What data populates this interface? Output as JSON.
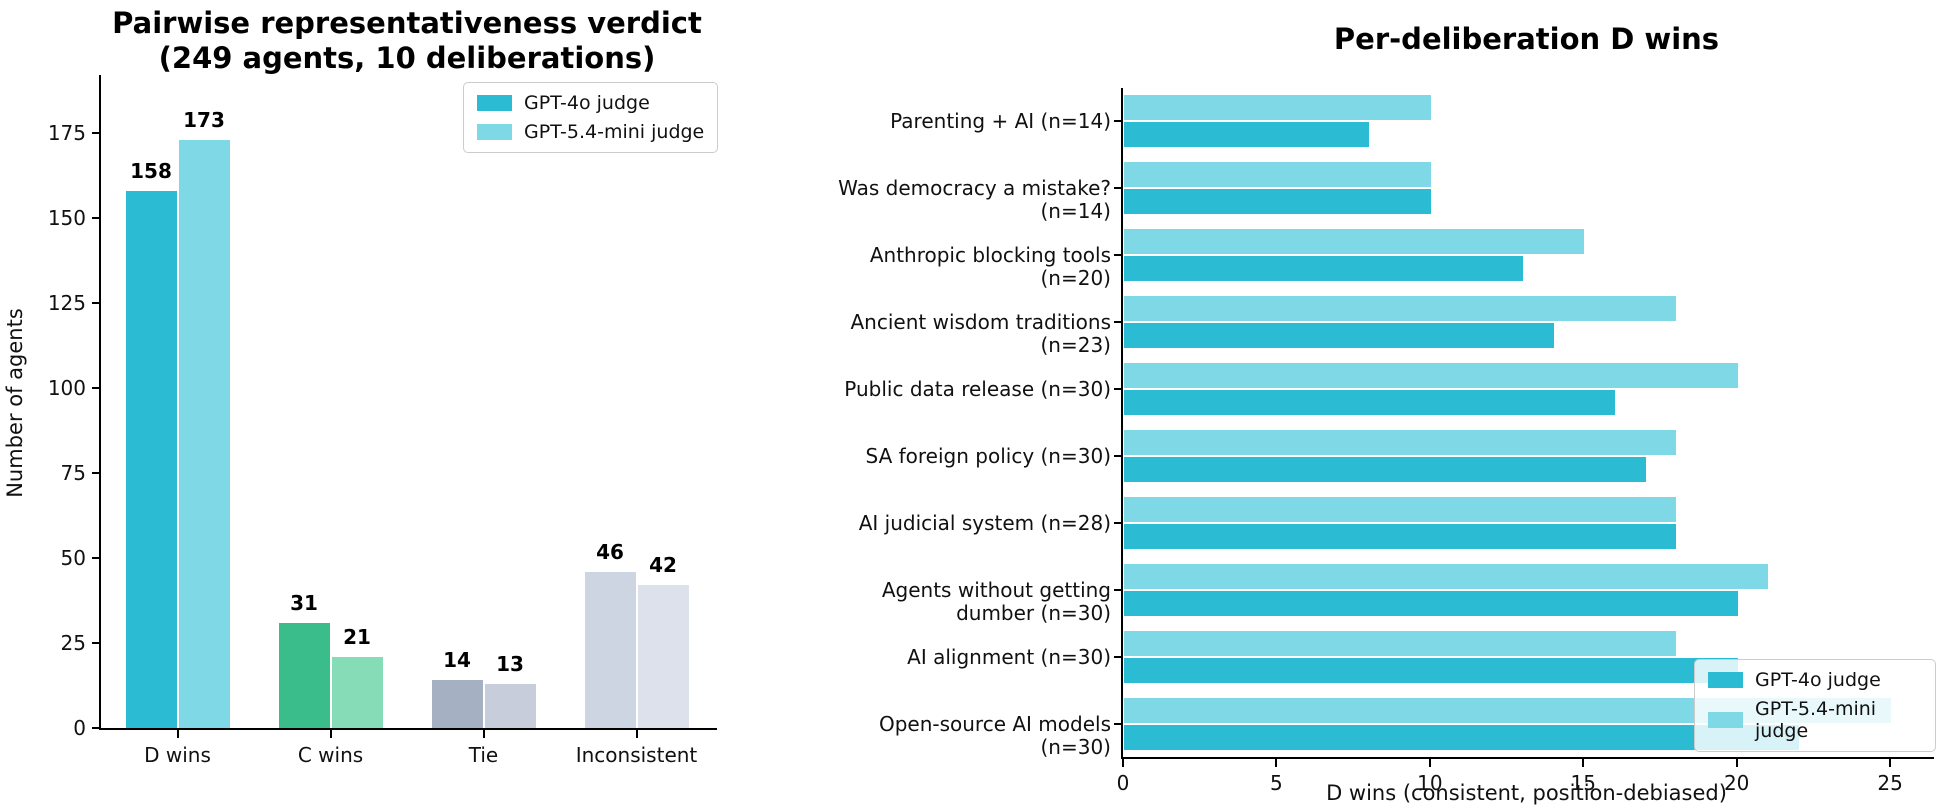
{
  "chart_data": [
    {
      "type": "bar",
      "title_line1": "Pairwise representativeness verdict",
      "title_line2": "(249 agents, 10 deliberations)",
      "ylabel": "Number of agents",
      "categories": [
        "D wins",
        "C wins",
        "Tie",
        "Inconsistent"
      ],
      "series": [
        {
          "name": "GPT-4o judge",
          "values": [
            158,
            31,
            14,
            46
          ]
        },
        {
          "name": "GPT-5.4-mini judge",
          "values": [
            173,
            21,
            13,
            42
          ]
        }
      ],
      "colors_series1_by_category": [
        "#2bbcd4",
        "#3abd8b",
        "#a6b0c3",
        "#cdd4e2"
      ],
      "colors_series2_by_category": [
        "#7ed8e6",
        "#86dcb7",
        "#c7cddb",
        "#dde1ec"
      ],
      "yticks": [
        0,
        25,
        50,
        75,
        100,
        125,
        150,
        175
      ],
      "ylim": [
        0,
        192
      ],
      "grid": false,
      "value_labels_shown": true,
      "legend": {
        "entries": [
          "GPT-4o judge",
          "GPT-5.4-mini judge"
        ],
        "colors": [
          "#2bbcd4",
          "#7ed8e6"
        ],
        "position": "upper right"
      }
    },
    {
      "type": "barh",
      "title": "Per-deliberation D wins",
      "xlabel": "D wins (consistent, position-debiased)",
      "categories": [
        "Parenting + AI (n=14)",
        "Was democracy a mistake? (n=14)",
        "Anthropic blocking tools (n=20)",
        "Ancient wisdom traditions (n=23)",
        "Public data release (n=30)",
        "SA foreign policy (n=30)",
        "AI judicial system (n=28)",
        "Agents without getting dumber (n=30)",
        "AI alignment (n=30)",
        "Open-source AI models (n=30)"
      ],
      "series": [
        {
          "name": "GPT-4o judge",
          "color": "#2bbcd4",
          "values": [
            8,
            10,
            13,
            14,
            16,
            17,
            18,
            20,
            20,
            22
          ]
        },
        {
          "name": "GPT-5.4-mini judge",
          "color": "#7ed8e6",
          "values": [
            10,
            10,
            15,
            18,
            20,
            18,
            18,
            21,
            18,
            25
          ]
        }
      ],
      "xticks": [
        0,
        5,
        10,
        15,
        20,
        25
      ],
      "xlim": [
        0,
        26.3
      ],
      "grid": false,
      "legend": {
        "entries": [
          "GPT-4o judge",
          "GPT-5.4-mini judge"
        ],
        "colors": [
          "#2bbcd4",
          "#7ed8e6"
        ],
        "position": "lower right"
      }
    }
  ]
}
